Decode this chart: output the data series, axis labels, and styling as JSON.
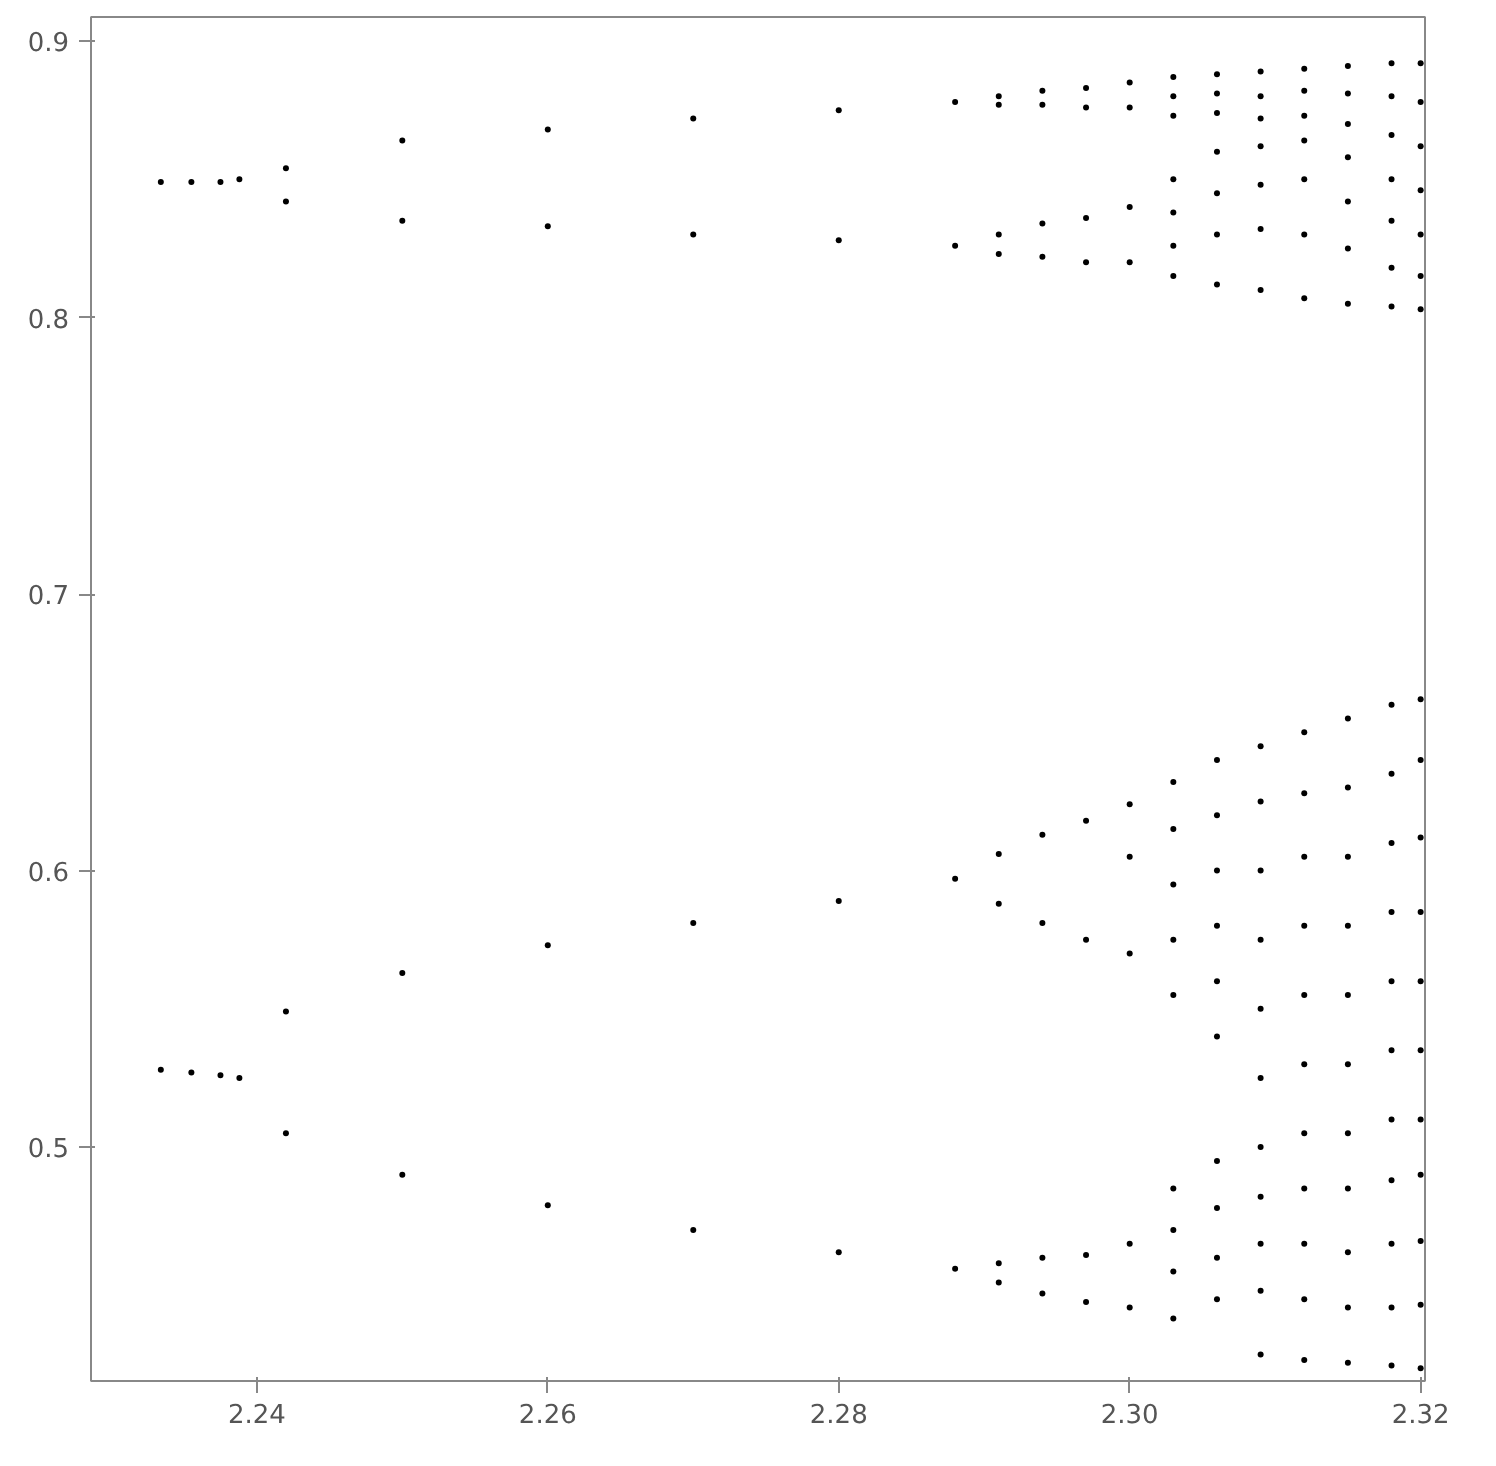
{
  "chart_data": {
    "type": "scatter",
    "marker": "circle",
    "grid": false,
    "xlim": [
      2.2286,
      2.3203
    ],
    "ylim": [
      0.4154,
      0.9087
    ],
    "xticks": [
      2.24,
      2.26,
      2.28,
      {
        "value": 2.3,
        "label": "2.30"
      },
      2.32
    ],
    "yticks": [
      0.5,
      0.6,
      0.7,
      0.8,
      0.9
    ],
    "series": [
      {
        "color": "#000000",
        "x": [
          2.2334,
          2.2334,
          2.2355,
          2.2355,
          2.2375,
          2.2375,
          2.2388,
          2.2388,
          2.242,
          2.242,
          2.242,
          2.242,
          2.25,
          2.25,
          2.25,
          2.25,
          2.26,
          2.26,
          2.26,
          2.26,
          2.27,
          2.27,
          2.27,
          2.27,
          2.28,
          2.28,
          2.28,
          2.28,
          2.288,
          2.288,
          2.288,
          2.288,
          2.291,
          2.291,
          2.291,
          2.291,
          2.291,
          2.291,
          2.291,
          2.291,
          2.294,
          2.294,
          2.294,
          2.294,
          2.294,
          2.294,
          2.294,
          2.294,
          2.297,
          2.297,
          2.297,
          2.297,
          2.297,
          2.297,
          2.297,
          2.297,
          2.3,
          2.3,
          2.3,
          2.3,
          2.3,
          2.3,
          2.3,
          2.3,
          2.3,
          2.303,
          2.303,
          2.303,
          2.303,
          2.303,
          2.303,
          2.303,
          2.303,
          2.303,
          2.303,
          2.303,
          2.303,
          2.303,
          2.303,
          2.303,
          2.303,
          2.306,
          2.306,
          2.306,
          2.306,
          2.306,
          2.306,
          2.306,
          2.306,
          2.306,
          2.306,
          2.306,
          2.306,
          2.306,
          2.306,
          2.306,
          2.306,
          2.306,
          2.309,
          2.309,
          2.309,
          2.309,
          2.309,
          2.309,
          2.309,
          2.309,
          2.309,
          2.309,
          2.309,
          2.309,
          2.309,
          2.309,
          2.309,
          2.309,
          2.309,
          2.309,
          2.312,
          2.312,
          2.312,
          2.312,
          2.312,
          2.312,
          2.312,
          2.312,
          2.312,
          2.312,
          2.312,
          2.312,
          2.312,
          2.312,
          2.312,
          2.312,
          2.312,
          2.312,
          2.315,
          2.315,
          2.315,
          2.315,
          2.315,
          2.315,
          2.315,
          2.315,
          2.315,
          2.315,
          2.315,
          2.315,
          2.315,
          2.315,
          2.315,
          2.315,
          2.315,
          2.315,
          2.318,
          2.318,
          2.318,
          2.318,
          2.318,
          2.318,
          2.318,
          2.318,
          2.318,
          2.318,
          2.318,
          2.318,
          2.318,
          2.318,
          2.318,
          2.318,
          2.318,
          2.318,
          2.32,
          2.32,
          2.32,
          2.32,
          2.32,
          2.32,
          2.32,
          2.32,
          2.32,
          2.32,
          2.32,
          2.32,
          2.32,
          2.32,
          2.32,
          2.32,
          2.32,
          2.32
        ],
        "values": [
          0.849,
          0.528,
          0.849,
          0.527,
          0.849,
          0.526,
          0.85,
          0.525,
          0.854,
          0.842,
          0.549,
          0.505,
          0.864,
          0.835,
          0.563,
          0.49,
          0.868,
          0.833,
          0.573,
          0.479,
          0.872,
          0.83,
          0.581,
          0.47,
          0.875,
          0.828,
          0.589,
          0.462,
          0.878,
          0.826,
          0.597,
          0.456,
          0.88,
          0.877,
          0.83,
          0.823,
          0.606,
          0.588,
          0.458,
          0.451,
          0.882,
          0.877,
          0.834,
          0.822,
          0.613,
          0.581,
          0.46,
          0.447,
          0.883,
          0.876,
          0.836,
          0.82,
          0.618,
          0.575,
          0.461,
          0.444,
          0.885,
          0.876,
          0.84,
          0.82,
          0.624,
          0.605,
          0.57,
          0.465,
          0.442,
          0.887,
          0.88,
          0.873,
          0.85,
          0.838,
          0.826,
          0.815,
          0.632,
          0.615,
          0.595,
          0.575,
          0.555,
          0.485,
          0.47,
          0.455,
          0.438,
          0.888,
          0.881,
          0.874,
          0.86,
          0.845,
          0.83,
          0.812,
          0.64,
          0.62,
          0.6,
          0.58,
          0.56,
          0.54,
          0.495,
          0.478,
          0.46,
          0.445,
          0.889,
          0.88,
          0.872,
          0.862,
          0.848,
          0.832,
          0.81,
          0.645,
          0.625,
          0.6,
          0.575,
          0.55,
          0.525,
          0.5,
          0.482,
          0.465,
          0.448,
          0.425,
          0.89,
          0.882,
          0.873,
          0.864,
          0.85,
          0.83,
          0.807,
          0.65,
          0.628,
          0.605,
          0.58,
          0.555,
          0.53,
          0.505,
          0.485,
          0.465,
          0.445,
          0.423,
          0.891,
          0.881,
          0.87,
          0.858,
          0.842,
          0.825,
          0.805,
          0.655,
          0.63,
          0.605,
          0.58,
          0.555,
          0.53,
          0.505,
          0.485,
          0.462,
          0.442,
          0.422,
          0.892,
          0.88,
          0.866,
          0.85,
          0.835,
          0.818,
          0.804,
          0.66,
          0.635,
          0.61,
          0.585,
          0.56,
          0.535,
          0.51,
          0.488,
          0.465,
          0.442,
          0.421,
          0.892,
          0.878,
          0.862,
          0.846,
          0.83,
          0.815,
          0.803,
          0.662,
          0.64,
          0.612,
          0.585,
          0.56,
          0.535,
          0.51,
          0.49,
          0.466,
          0.443,
          0.42
        ]
      }
    ]
  }
}
